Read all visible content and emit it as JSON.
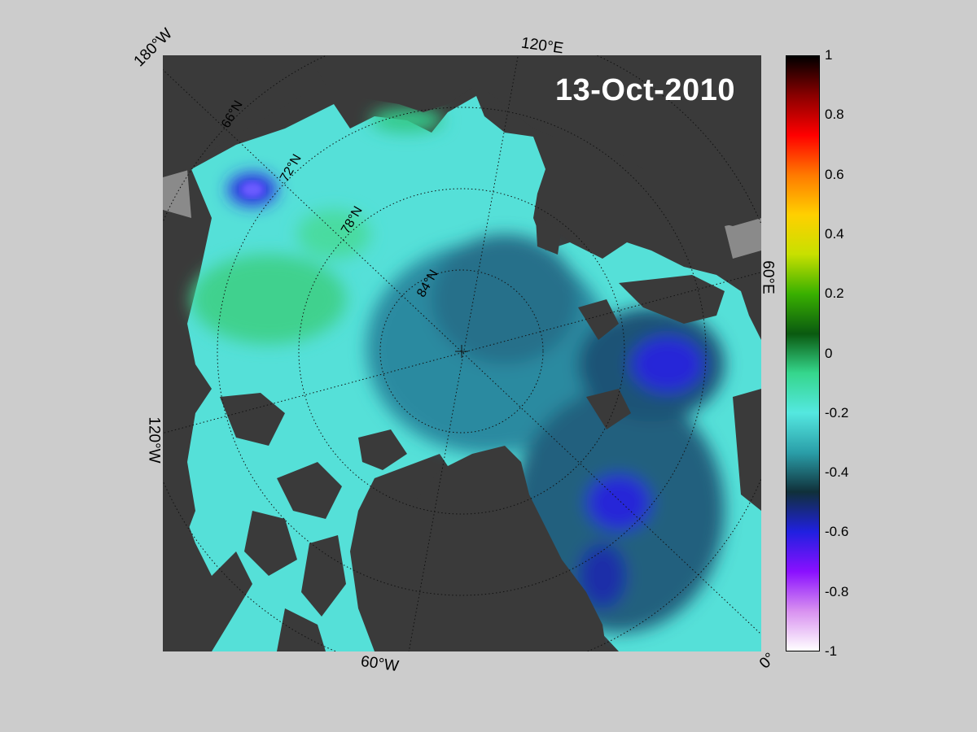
{
  "map": {
    "date": "13-Oct-2010",
    "edge_labels": {
      "top_left": "180°W",
      "top_right": "120°E",
      "right": "60°E",
      "left": "120°W",
      "bottom": "60°W",
      "bottom_right": "0°"
    },
    "lat_labels": [
      "66°N",
      "72°N",
      "78°N",
      "84°N"
    ],
    "colors": {
      "land": "#3a3a3a",
      "missing": "#8a8a8a",
      "ocean_base": "#4fd4cf"
    }
  },
  "colorbar": {
    "min": -1,
    "max": 1,
    "tick_labels": [
      "1",
      "0.8",
      "0.6",
      "0.4",
      "0.2",
      "0",
      "-0.2",
      "-0.4",
      "-0.6",
      "-0.8",
      "-1"
    ],
    "colors_top_to_bottom": [
      "#000000",
      "#8b0000",
      "#ff0000",
      "#ff7a00",
      "#ffd000",
      "#c8e000",
      "#39b000",
      "#0a5a10",
      "#35d68c",
      "#54e8e0",
      "#2a9ea8",
      "#10303a",
      "#2020e0",
      "#8a10ff",
      "#d890f0",
      "#ffffff"
    ]
  }
}
